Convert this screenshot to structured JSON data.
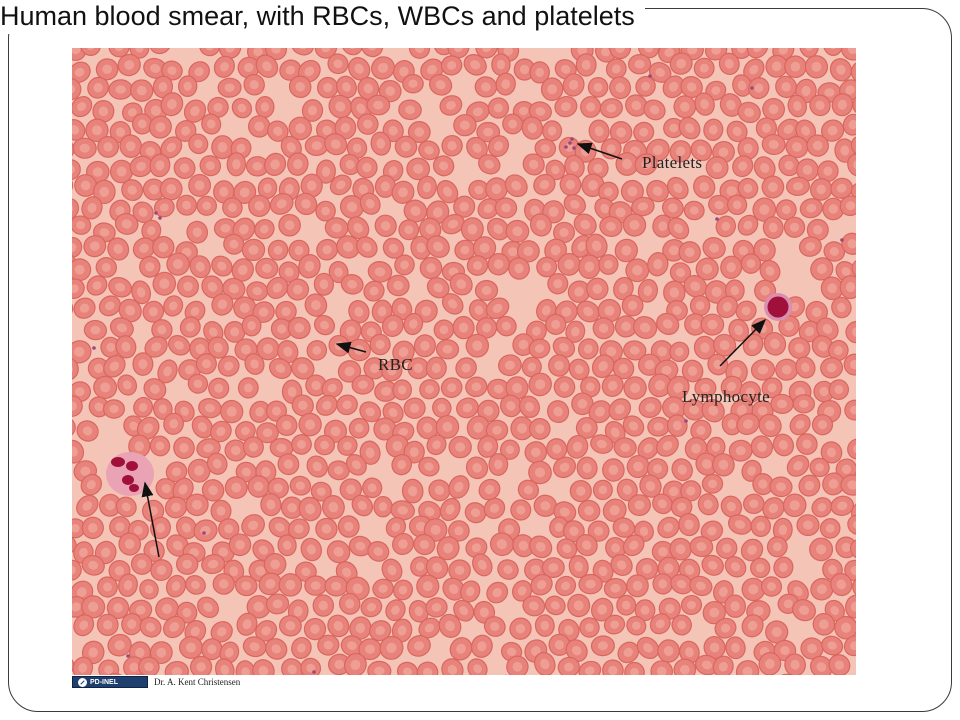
{
  "slide": {
    "title": "Human blood smear, with RBCs, WBCs and platelets"
  },
  "labels": {
    "platelets": "Platelets",
    "rbc": "RBC",
    "lymphocyte": "Lymphocyte"
  },
  "credit": {
    "license": "PD-INEL",
    "author": "Dr. A. Kent Christensen"
  },
  "colors": {
    "background": "#f4c4b6",
    "rbc_fill": "#e8837b",
    "rbc_rim": "#d9665f",
    "rbc_center": "#f2aaa0",
    "nucleus": "#a0103a",
    "lymphocyte_halo": "#d98fb0",
    "platelet": "#9a4a7a",
    "arrow": "#111111"
  }
}
